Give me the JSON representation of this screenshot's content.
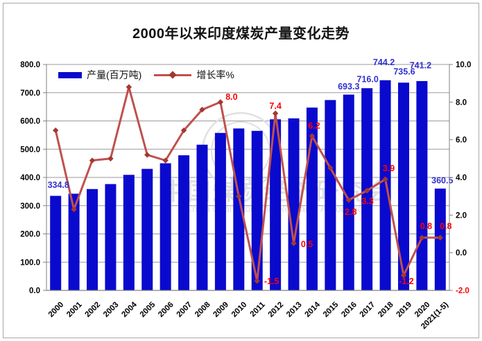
{
  "title": "2000年以来印度煤炭产量变化走势",
  "watermark": {
    "cjk": "中国煤炭经济研究会",
    "en": "China Coal Economic Research Association"
  },
  "colors": {
    "bar": "#0a0ace",
    "bar_label": "#3030cf",
    "line": "#c0504d",
    "marker": "#a33832",
    "line_label": "#ff0000",
    "grid": "#9a9a9a",
    "axis": "#808080",
    "tick_text": "#000000",
    "negative_tick_text": "#ff0000",
    "watermark": "#e0e0e0"
  },
  "legend": [
    {
      "label": "产量(百万吨)",
      "type": "bar"
    },
    {
      "label": "增长率%",
      "type": "line"
    }
  ],
  "chart_data": {
    "type": "bar+line combo",
    "title": "2000年以来印度煤炭产量变化走势",
    "categories": [
      "2000",
      "2001",
      "2002",
      "2003",
      "2004",
      "2005",
      "2006",
      "2007",
      "2008",
      "2009",
      "2010",
      "2011",
      "2012",
      "2013",
      "2014",
      "2015",
      "2016",
      "2017",
      "2018",
      "2019",
      "2020",
      "2021(1-5)"
    ],
    "series": [
      {
        "name": "产量(百万吨)",
        "type": "bar",
        "axis": "left",
        "values": [
          334.8,
          342.4,
          358.9,
          376.5,
          409.2,
          430.3,
          450.2,
          478.4,
          515.9,
          557.6,
          573.4,
          564.9,
          605.8,
          609.2,
          647.3,
          674.0,
          693.3,
          716.0,
          744.2,
          735.6,
          741.2,
          360.5
        ],
        "visible_labels": {
          "0": "334.8",
          "16": "693.3",
          "17": "716.0",
          "18": "744.2",
          "19": "735.6",
          "20": "741.2",
          "21": "360.5"
        }
      },
      {
        "name": "增长率%",
        "type": "line",
        "axis": "right",
        "values": [
          6.5,
          2.3,
          4.9,
          5.0,
          8.8,
          5.2,
          4.9,
          6.5,
          7.6,
          8.0,
          3.0,
          -1.5,
          7.4,
          0.5,
          6.2,
          4.5,
          2.8,
          3.3,
          3.9,
          -1.2,
          0.8,
          0.8
        ],
        "visible_labels": {
          "9": "8.0",
          "11": "-1.5",
          "12": "7.4",
          "13": "0.5",
          "14": "6.2",
          "16": "2.8",
          "17": "3.3",
          "18": "3.9",
          "19": "-1.2",
          "20": "0.8",
          "21": "0.8"
        }
      }
    ],
    "left_axis": {
      "min": 0,
      "max": 800,
      "tick_step": 100,
      "ticks": [
        "800.0",
        "700.0",
        "600.0",
        "500.0",
        "400.0",
        "300.0",
        "200.0",
        "100.0",
        "0.0"
      ]
    },
    "right_axis": {
      "min": -2,
      "max": 10,
      "tick_step": 2,
      "ticks": [
        "10.0",
        "8.0",
        "6.0",
        "4.0",
        "2.0",
        "0.0",
        "-2.0"
      ]
    },
    "grid": true,
    "legend_position": "top-left-inside"
  }
}
